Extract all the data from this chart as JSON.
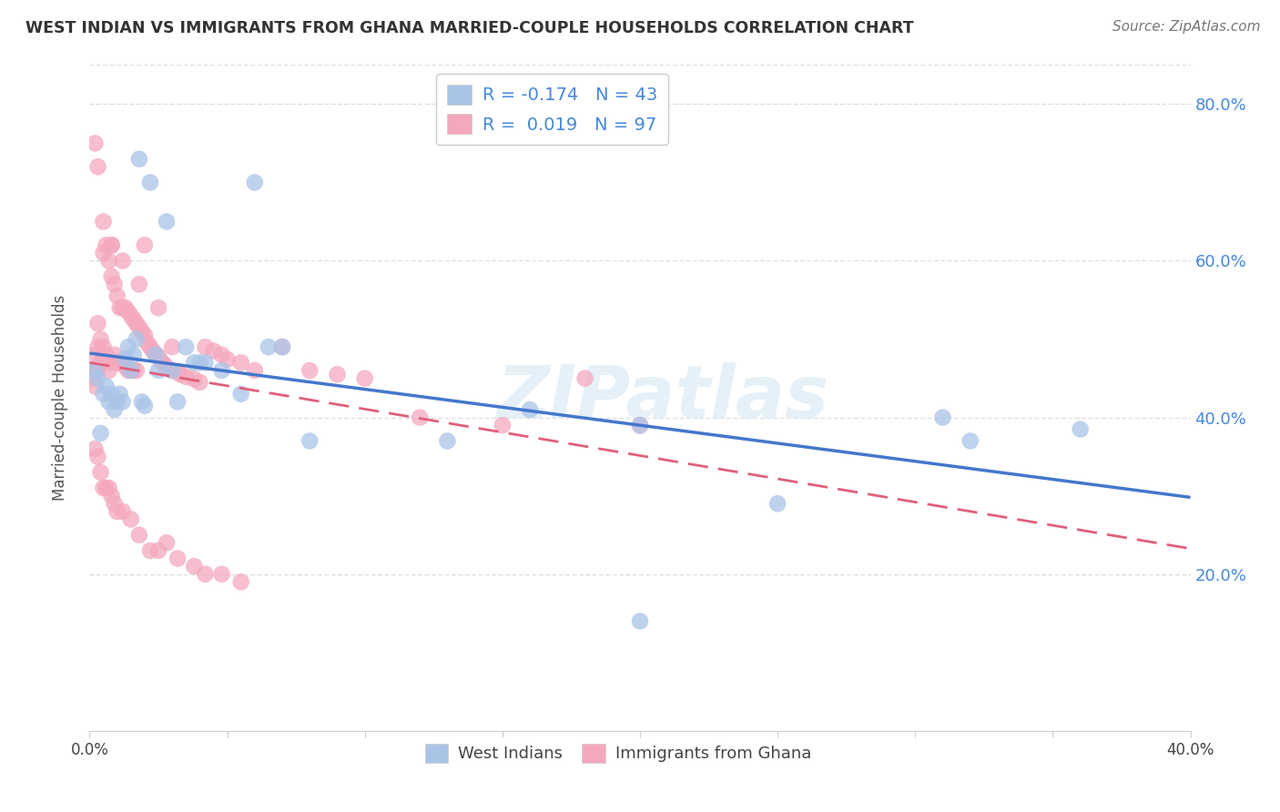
{
  "title": "WEST INDIAN VS IMMIGRANTS FROM GHANA MARRIED-COUPLE HOUSEHOLDS CORRELATION CHART",
  "source": "Source: ZipAtlas.com",
  "ylabel": "Married-couple Households",
  "xlim": [
    0.0,
    0.4
  ],
  "ylim": [
    0.0,
    0.85
  ],
  "xticks": [
    0.0,
    0.05,
    0.1,
    0.15,
    0.2,
    0.25,
    0.3,
    0.35,
    0.4
  ],
  "xticklabels": [
    "0.0%",
    "",
    "",
    "",
    "",
    "",
    "",
    "",
    "40.0%"
  ],
  "yticks": [
    0.0,
    0.2,
    0.4,
    0.6,
    0.8
  ],
  "yticklabels_right": [
    "",
    "20.0%",
    "40.0%",
    "60.0%",
    "80.0%"
  ],
  "background_color": "#ffffff",
  "grid_color": "#e0e0e0",
  "blue_color": "#aac4e8",
  "pink_color": "#f4a8be",
  "blue_line_color": "#4477cc",
  "pink_line_color": "#e0607a",
  "R_blue": -0.174,
  "N_blue": 43,
  "R_pink": 0.019,
  "N_pink": 97,
  "legend_label_blue": "West Indians",
  "legend_label_pink": "Immigrants from Ghana",
  "watermark": "ZIPatlas",
  "blue_x": [
    0.002,
    0.003,
    0.004,
    0.005,
    0.006,
    0.007,
    0.008,
    0.009,
    0.01,
    0.011,
    0.012,
    0.013,
    0.014,
    0.015,
    0.016,
    0.017,
    0.018,
    0.019,
    0.02,
    0.022,
    0.024,
    0.025,
    0.028,
    0.03,
    0.032,
    0.035,
    0.038,
    0.04,
    0.042,
    0.048,
    0.055,
    0.06,
    0.065,
    0.07,
    0.08,
    0.13,
    0.16,
    0.2,
    0.25,
    0.31,
    0.32,
    0.36,
    0.2
  ],
  "blue_y": [
    0.46,
    0.45,
    0.38,
    0.43,
    0.44,
    0.42,
    0.43,
    0.41,
    0.42,
    0.43,
    0.42,
    0.475,
    0.49,
    0.46,
    0.48,
    0.5,
    0.73,
    0.42,
    0.415,
    0.7,
    0.48,
    0.46,
    0.65,
    0.46,
    0.42,
    0.49,
    0.47,
    0.47,
    0.47,
    0.46,
    0.43,
    0.7,
    0.49,
    0.49,
    0.37,
    0.37,
    0.41,
    0.14,
    0.29,
    0.4,
    0.37,
    0.385,
    0.39
  ],
  "pink_x": [
    0.001,
    0.002,
    0.002,
    0.002,
    0.003,
    0.003,
    0.003,
    0.004,
    0.004,
    0.005,
    0.005,
    0.006,
    0.006,
    0.007,
    0.007,
    0.008,
    0.008,
    0.008,
    0.009,
    0.009,
    0.01,
    0.01,
    0.011,
    0.011,
    0.012,
    0.012,
    0.013,
    0.013,
    0.014,
    0.014,
    0.015,
    0.015,
    0.016,
    0.016,
    0.017,
    0.017,
    0.018,
    0.019,
    0.02,
    0.02,
    0.021,
    0.022,
    0.023,
    0.024,
    0.025,
    0.026,
    0.027,
    0.028,
    0.03,
    0.03,
    0.032,
    0.033,
    0.035,
    0.038,
    0.04,
    0.042,
    0.045,
    0.048,
    0.05,
    0.055,
    0.06,
    0.07,
    0.08,
    0.09,
    0.1,
    0.12,
    0.15,
    0.18,
    0.2,
    0.002,
    0.003,
    0.004,
    0.005,
    0.006,
    0.007,
    0.008,
    0.009,
    0.01,
    0.012,
    0.015,
    0.018,
    0.022,
    0.025,
    0.028,
    0.032,
    0.038,
    0.042,
    0.048,
    0.055,
    0.002,
    0.003,
    0.005,
    0.008,
    0.012,
    0.018,
    0.025
  ],
  "pink_y": [
    0.45,
    0.44,
    0.46,
    0.48,
    0.46,
    0.49,
    0.52,
    0.5,
    0.47,
    0.49,
    0.61,
    0.48,
    0.62,
    0.46,
    0.6,
    0.47,
    0.58,
    0.62,
    0.48,
    0.57,
    0.47,
    0.555,
    0.47,
    0.54,
    0.47,
    0.54,
    0.465,
    0.54,
    0.46,
    0.535,
    0.46,
    0.53,
    0.46,
    0.525,
    0.46,
    0.52,
    0.515,
    0.51,
    0.505,
    0.62,
    0.495,
    0.49,
    0.485,
    0.48,
    0.478,
    0.472,
    0.468,
    0.464,
    0.46,
    0.49,
    0.458,
    0.455,
    0.452,
    0.449,
    0.445,
    0.49,
    0.485,
    0.48,
    0.474,
    0.47,
    0.46,
    0.49,
    0.46,
    0.455,
    0.45,
    0.4,
    0.39,
    0.45,
    0.39,
    0.36,
    0.35,
    0.33,
    0.31,
    0.31,
    0.31,
    0.3,
    0.29,
    0.28,
    0.28,
    0.27,
    0.25,
    0.23,
    0.23,
    0.24,
    0.22,
    0.21,
    0.2,
    0.2,
    0.19,
    0.75,
    0.72,
    0.65,
    0.62,
    0.6,
    0.57,
    0.54
  ]
}
